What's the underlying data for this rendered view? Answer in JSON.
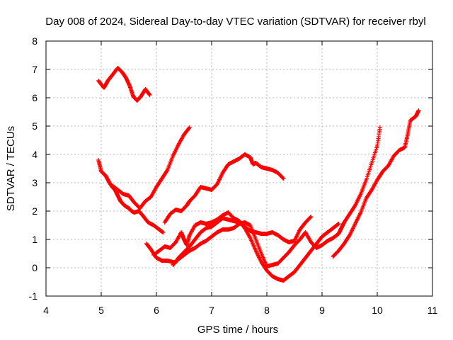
{
  "chart_data": {
    "type": "scatter",
    "title": "Day 008 of 2024, Sidereal Day-to-day VTEC variation (SDTVAR) for receiver rbyl",
    "xlabel": "GPS time / hours",
    "ylabel": "SDTVAR / TECUs",
    "xlim": [
      4,
      11
    ],
    "ylim": [
      -1,
      8
    ],
    "xticks": [
      4,
      5,
      6,
      7,
      8,
      9,
      10,
      11
    ],
    "yticks": [
      -1,
      0,
      1,
      2,
      3,
      4,
      5,
      6,
      7,
      8
    ],
    "grid": true,
    "marker": "plus",
    "colors": {
      "series": "#ff0000",
      "grid": "#a0a0a0",
      "axis": "#000000"
    },
    "series": [
      {
        "x": [
          4.95,
          5.05,
          5.12,
          5.2,
          5.3,
          5.38,
          5.45,
          5.52,
          5.58,
          5.65,
          5.72,
          5.8,
          5.88
        ],
        "y": [
          6.6,
          6.35,
          6.6,
          6.8,
          7.05,
          6.9,
          6.7,
          6.4,
          6.05,
          5.9,
          6.05,
          6.3,
          6.1
        ]
      },
      {
        "x": [
          4.95,
          5.0,
          5.08,
          5.15,
          5.2,
          5.25,
          5.3,
          5.35,
          5.42,
          5.5,
          5.55,
          5.6,
          5.68,
          5.75,
          5.85,
          5.95,
          6.05,
          6.12
        ],
        "y": [
          3.8,
          3.4,
          3.25,
          3.0,
          2.85,
          2.75,
          2.55,
          2.35,
          2.2,
          2.1,
          2.0,
          1.95,
          2.0,
          1.85,
          1.6,
          1.5,
          1.35,
          1.25
        ]
      },
      {
        "x": [
          5.2,
          5.3,
          5.4,
          5.5,
          5.6,
          5.7,
          5.8,
          5.9,
          6.0,
          6.1,
          6.2,
          6.3,
          6.4,
          6.5,
          6.6
        ],
        "y": [
          2.9,
          2.75,
          2.6,
          2.55,
          2.3,
          2.1,
          2.35,
          2.5,
          2.85,
          3.15,
          3.45,
          3.95,
          4.35,
          4.7,
          4.95
        ]
      },
      {
        "x": [
          6.15,
          6.25,
          6.35,
          6.45,
          6.55,
          6.6,
          6.7,
          6.8,
          6.9,
          7.0,
          7.1,
          7.2,
          7.3,
          7.4,
          7.5,
          7.6,
          7.7,
          7.75,
          7.8,
          7.9,
          8.0,
          8.1,
          8.2,
          8.3
        ],
        "y": [
          1.6,
          1.9,
          2.05,
          2.0,
          2.2,
          2.35,
          2.55,
          2.85,
          2.8,
          2.75,
          2.95,
          3.35,
          3.65,
          3.75,
          3.85,
          4.0,
          3.9,
          3.65,
          3.7,
          3.55,
          3.5,
          3.45,
          3.35,
          3.15
        ]
      },
      {
        "x": [
          5.82,
          5.9,
          6.0,
          6.1,
          6.2,
          6.3,
          6.35,
          6.4,
          6.5,
          6.6,
          6.7,
          6.8,
          6.9,
          7.0,
          7.1,
          7.2,
          7.3,
          7.4,
          7.5,
          7.6,
          7.7,
          7.8,
          7.9,
          8.0,
          8.1,
          8.2,
          8.3,
          8.4,
          8.5,
          8.6,
          8.7,
          8.8
        ],
        "y": [
          0.85,
          0.65,
          0.35,
          0.25,
          0.25,
          0.2,
          0.2,
          0.35,
          0.55,
          0.75,
          1.0,
          1.25,
          1.4,
          1.45,
          1.6,
          1.75,
          1.7,
          1.65,
          1.6,
          1.45,
          1.3,
          1.25,
          1.2,
          1.2,
          1.25,
          1.15,
          1.0,
          0.9,
          0.95,
          1.35,
          1.6,
          1.8
        ]
      },
      {
        "x": [
          5.95,
          6.05,
          6.15,
          6.25,
          6.35,
          6.45,
          6.5,
          6.55,
          6.6,
          6.7,
          6.8,
          6.9,
          7.0,
          7.1,
          7.2,
          7.3,
          7.4,
          7.5,
          7.6,
          7.7,
          7.8,
          7.9,
          8.0,
          8.1,
          8.2,
          8.3,
          8.4,
          8.5,
          8.6,
          8.7,
          8.8,
          8.9,
          9.0,
          9.1,
          9.2,
          9.3
        ],
        "y": [
          0.45,
          0.6,
          0.75,
          0.7,
          0.9,
          1.25,
          1.0,
          0.8,
          1.15,
          1.5,
          1.6,
          1.55,
          1.6,
          1.7,
          1.85,
          1.95,
          1.75,
          1.65,
          1.4,
          1.05,
          0.6,
          0.2,
          -0.1,
          -0.3,
          -0.4,
          -0.45,
          -0.3,
          -0.15,
          0.1,
          0.35,
          0.6,
          0.85,
          1.1,
          1.25,
          1.4,
          1.55
        ]
      },
      {
        "x": [
          6.3,
          6.4,
          6.5,
          6.6,
          6.7,
          6.8,
          6.9,
          7.0,
          7.1,
          7.2,
          7.3,
          7.4,
          7.5,
          7.6,
          7.7,
          7.8,
          7.9,
          8.0,
          8.1,
          8.2,
          8.3,
          8.4,
          8.5,
          8.6,
          8.7,
          8.8,
          8.9,
          9.0,
          9.1,
          9.2,
          9.3,
          9.35,
          9.4,
          9.5,
          9.6,
          9.7,
          9.8,
          9.9,
          10.0,
          10.05
        ],
        "y": [
          0.1,
          0.3,
          0.45,
          0.6,
          0.7,
          0.85,
          0.95,
          1.1,
          1.25,
          1.35,
          1.35,
          1.4,
          1.55,
          1.6,
          1.5,
          1.0,
          0.5,
          0.05,
          0.1,
          0.15,
          0.35,
          0.55,
          0.8,
          1.0,
          1.25,
          0.9,
          0.7,
          0.8,
          0.95,
          1.05,
          1.2,
          1.4,
          1.6,
          1.9,
          2.2,
          2.6,
          3.1,
          3.7,
          4.3,
          4.95
        ]
      },
      {
        "x": [
          9.2,
          9.3,
          9.4,
          9.5,
          9.6,
          9.7,
          9.8,
          9.9,
          10.0,
          10.1,
          10.2,
          10.3,
          10.4,
          10.5,
          10.55,
          10.6,
          10.7,
          10.75
        ],
        "y": [
          0.4,
          0.6,
          0.85,
          1.15,
          1.55,
          1.95,
          2.45,
          2.75,
          3.1,
          3.4,
          3.6,
          3.95,
          4.15,
          4.25,
          4.7,
          5.2,
          5.35,
          5.55
        ]
      }
    ]
  }
}
